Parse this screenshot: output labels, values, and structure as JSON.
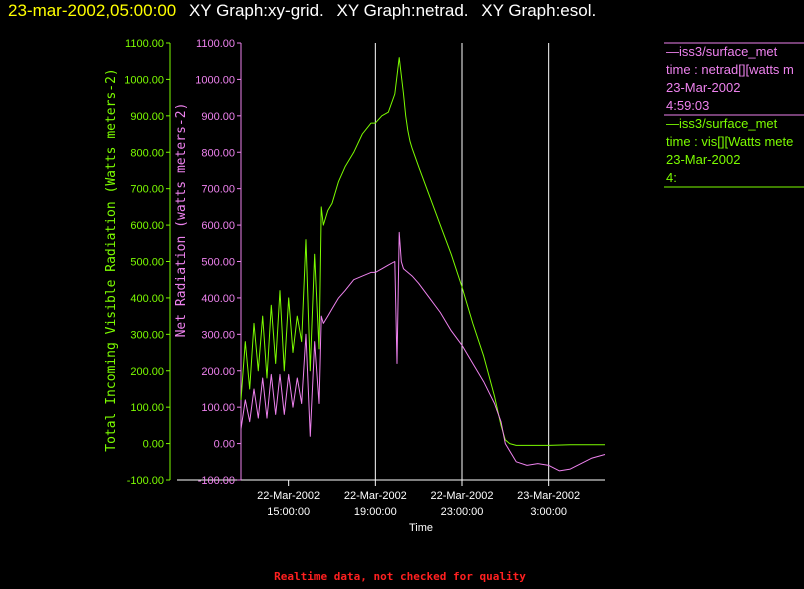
{
  "header": {
    "time_label": "23-mar-2002,05:00:00",
    "graphs": [
      "XY Graph:xy-grid.",
      "XY Graph:netrad.",
      "XY Graph:esol."
    ]
  },
  "legend": {
    "entries": [
      {
        "source": "—iss3/surface_met",
        "variable": "time : netrad[][watts m",
        "date": "23-Mar-2002",
        "time": "4:59:03",
        "color": "#ee82ee"
      },
      {
        "source": "—iss3/surface_met",
        "variable": "time : vis[][Watts mete",
        "date": "23-Mar-2002",
        "time": "4:",
        "color": "#7cfc00"
      }
    ]
  },
  "footer": {
    "text": "Realtime data, not checked for quality",
    "color": "#ff2020"
  },
  "colors": {
    "background": "#000000",
    "title_time": "#ffff00",
    "title": "#ffffff",
    "net": "#ee82ee",
    "vis": "#7cfc00",
    "grid": "#ffffff"
  },
  "chart_data": {
    "type": "line",
    "xlabel": "Time",
    "x_ticks": [
      {
        "hours": 0,
        "date": "22-Mar-2002",
        "time": "15:00:00"
      },
      {
        "hours": 4,
        "date": "22-Mar-2002",
        "time": "19:00:00"
      },
      {
        "hours": 8,
        "date": "22-Mar-2002",
        "time": "23:00:00"
      },
      {
        "hours": 12,
        "date": "23-Mar-2002",
        "time": "3:00:00"
      }
    ],
    "xlim_hours_from_15": [
      -2.2,
      14.6
    ],
    "vertical_grid_hours": [
      4,
      8,
      12
    ],
    "y_axes": [
      {
        "side": "left-outer",
        "label": "Total Incoming Visible Radiation (Watts meters-2)",
        "ylim": [
          -100,
          1100
        ],
        "ticks": [
          "1100.00",
          "1000.00",
          "900.00",
          "800.00",
          "700.00",
          "600.00",
          "500.00",
          "400.00",
          "300.00",
          "200.00",
          "100.00",
          "0.00",
          "-100.00"
        ],
        "color": "#7cfc00"
      },
      {
        "side": "left-inner",
        "label": "Net Radiation (watts meters-2)",
        "ylim": [
          -100,
          1100
        ],
        "ticks": [
          "1100.00",
          "1000.00",
          "900.00",
          "800.00",
          "700.00",
          "600.00",
          "500.00",
          "400.00",
          "300.00",
          "200.00",
          "100.00",
          "0.00",
          "-100.00"
        ],
        "color": "#ee82ee"
      }
    ],
    "series": [
      {
        "name": "vis",
        "color": "#7cfc00",
        "x": [
          -2.2,
          -2.0,
          -1.8,
          -1.6,
          -1.4,
          -1.2,
          -1.0,
          -0.8,
          -0.6,
          -0.4,
          -0.2,
          0.0,
          0.2,
          0.4,
          0.6,
          0.8,
          1.0,
          1.2,
          1.4,
          1.5,
          1.6,
          1.8,
          2.0,
          2.3,
          2.6,
          3.0,
          3.4,
          3.8,
          4.0,
          4.3,
          4.6,
          4.9,
          5.1,
          5.3,
          5.4,
          5.5,
          5.6,
          5.7,
          6.0,
          6.5,
          7.0,
          7.5,
          8.0,
          8.5,
          9.0,
          9.5,
          9.8,
          10.0,
          10.2,
          10.5,
          11.0,
          12.0,
          13.0,
          14.0,
          14.6
        ],
        "y": [
          120,
          280,
          150,
          330,
          200,
          350,
          180,
          380,
          220,
          420,
          200,
          400,
          250,
          350,
          280,
          560,
          200,
          520,
          260,
          650,
          600,
          640,
          660,
          720,
          760,
          800,
          850,
          880,
          880,
          900,
          910,
          960,
          1060,
          960,
          900,
          860,
          830,
          810,
          760,
          680,
          600,
          520,
          430,
          330,
          240,
          130,
          50,
          10,
          0,
          -5,
          -5,
          -5,
          -3,
          -3,
          -3
        ]
      },
      {
        "name": "netrad",
        "color": "#ee82ee",
        "x": [
          -2.2,
          -2.0,
          -1.8,
          -1.6,
          -1.4,
          -1.2,
          -1.0,
          -0.8,
          -0.6,
          -0.4,
          -0.2,
          0.0,
          0.2,
          0.4,
          0.6,
          0.8,
          1.0,
          1.2,
          1.4,
          1.5,
          1.6,
          1.8,
          2.0,
          2.3,
          2.6,
          3.0,
          3.4,
          3.8,
          4.0,
          4.3,
          4.6,
          4.9,
          5.0,
          5.1,
          5.2,
          5.3,
          5.5,
          5.7,
          6.0,
          6.5,
          7.0,
          7.5,
          8.0,
          8.5,
          9.0,
          9.5,
          9.8,
          10.0,
          10.5,
          11.0,
          11.5,
          12.0,
          12.5,
          13.0,
          14.0,
          14.6
        ],
        "y": [
          40,
          120,
          60,
          150,
          70,
          180,
          70,
          190,
          80,
          190,
          80,
          190,
          100,
          180,
          110,
          300,
          20,
          280,
          110,
          350,
          330,
          350,
          370,
          400,
          420,
          450,
          460,
          470,
          470,
          480,
          490,
          500,
          220,
          580,
          500,
          480,
          470,
          460,
          440,
          400,
          360,
          310,
          270,
          220,
          170,
          110,
          60,
          0,
          -50,
          -60,
          -55,
          -60,
          -75,
          -70,
          -40,
          -30
        ]
      }
    ]
  }
}
